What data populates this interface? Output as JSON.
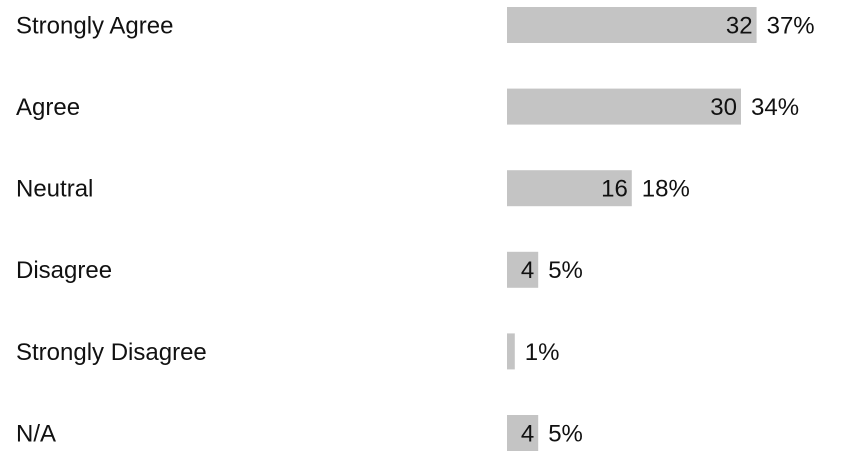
{
  "chart_data": {
    "type": "bar",
    "orientation": "horizontal",
    "categories": [
      "Strongly Agree",
      "Agree",
      "Neutral",
      "Disagree",
      "Strongly Disagree",
      "N/A"
    ],
    "values": [
      32,
      30,
      16,
      4,
      1,
      4
    ],
    "value_labels": [
      "32",
      "30",
      "16",
      "4",
      "",
      "4"
    ],
    "percent_labels": [
      "37%",
      "34%",
      "18%",
      "5%",
      "1%",
      "5%"
    ],
    "title": "",
    "xlabel": "",
    "ylabel": "",
    "grid": false,
    "legend": "none",
    "bar_color": "#c4c4c4",
    "text_color": "#111111"
  }
}
